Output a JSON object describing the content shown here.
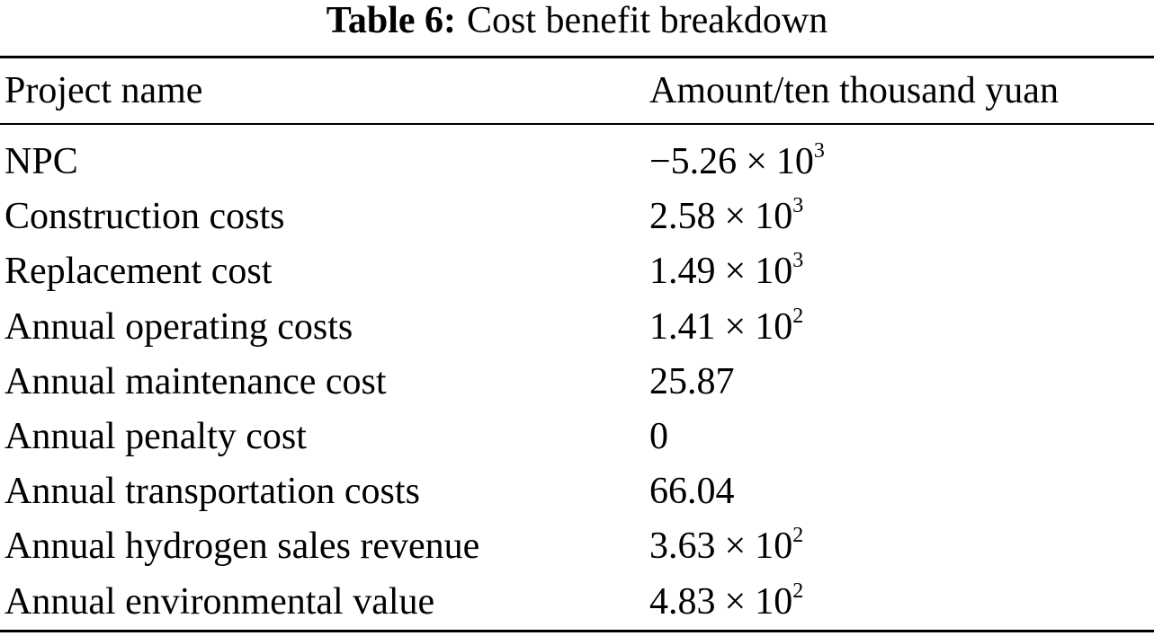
{
  "caption": {
    "label": "Table 6:",
    "title": "Cost benefit breakdown"
  },
  "table": {
    "headers": {
      "project": "Project name",
      "amount": "Amount/ten thousand yuan"
    },
    "rows": [
      {
        "project": "NPC",
        "mantissa": "−5.26",
        "times": "×",
        "base": "10",
        "exponent": "3",
        "plain": ""
      },
      {
        "project": "Construction costs",
        "mantissa": "2.58",
        "times": "×",
        "base": "10",
        "exponent": "3",
        "plain": ""
      },
      {
        "project": "Replacement cost",
        "mantissa": "1.49",
        "times": "×",
        "base": "10",
        "exponent": "3",
        "plain": ""
      },
      {
        "project": "Annual operating costs",
        "mantissa": "1.41",
        "times": "×",
        "base": "10",
        "exponent": "2",
        "plain": ""
      },
      {
        "project": "Annual maintenance cost",
        "mantissa": "",
        "times": "",
        "base": "",
        "exponent": "",
        "plain": "25.87"
      },
      {
        "project": "Annual penalty cost",
        "mantissa": "",
        "times": "",
        "base": "",
        "exponent": "",
        "plain": "0"
      },
      {
        "project": "Annual transportation costs",
        "mantissa": "",
        "times": "",
        "base": "",
        "exponent": "",
        "plain": "66.04"
      },
      {
        "project": "Annual hydrogen sales revenue",
        "mantissa": "3.63",
        "times": "×",
        "base": "10",
        "exponent": "2",
        "plain": ""
      },
      {
        "project": "Annual environmental value",
        "mantissa": "4.83",
        "times": "×",
        "base": "10",
        "exponent": "2",
        "plain": ""
      }
    ]
  }
}
